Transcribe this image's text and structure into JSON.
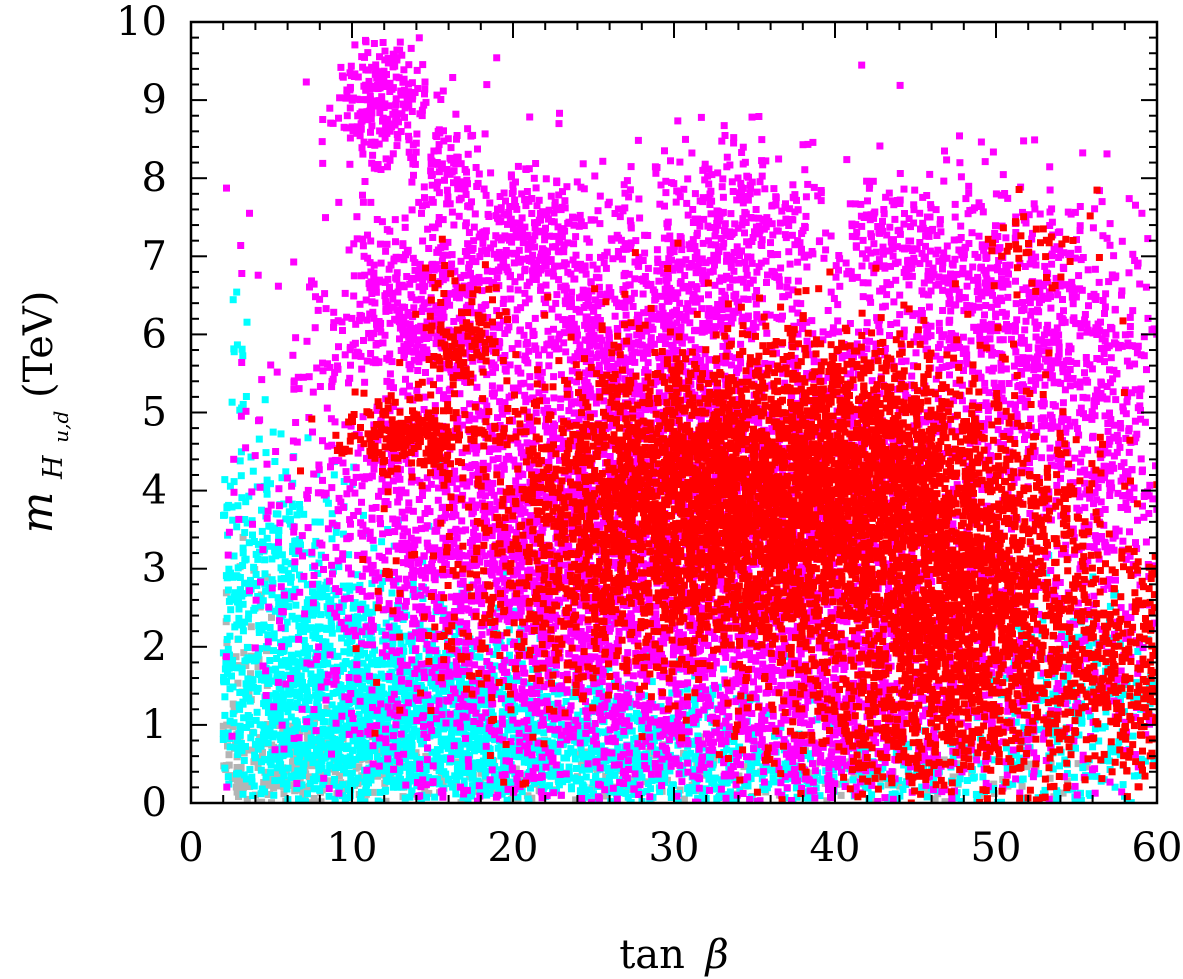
{
  "chart_data": {
    "type": "scatter",
    "title": "",
    "xlabel": {
      "fn": "tan",
      "sym": "β"
    },
    "ylabel": {
      "sym": "m",
      "sub": "H",
      "subsub": "u,d",
      "unit": "(TeV)"
    },
    "xlim": [
      0,
      60
    ],
    "ylim": [
      0,
      10
    ],
    "xticks": [
      0,
      10,
      20,
      30,
      40,
      50,
      60
    ],
    "yticks": [
      0,
      1,
      2,
      3,
      4,
      5,
      6,
      7,
      8,
      9,
      10
    ],
    "grid": false,
    "legend": "none",
    "series": [
      {
        "color": "#b4b4b4",
        "description_regions": "grey points (all points) mostly below 1 TeV, tan beta 2-60",
        "clusters": [
          {
            "cx": 6,
            "cy": 0.4,
            "sx": 4,
            "sy": 0.35,
            "n": 260
          },
          {
            "cx": 20,
            "cy": 0.3,
            "sx": 8,
            "sy": 0.25,
            "n": 180
          },
          {
            "cx": 45,
            "cy": 0.3,
            "sx": 10,
            "sy": 0.2,
            "n": 120
          },
          {
            "cx": 3,
            "cy": 1.8,
            "sx": 1.2,
            "sy": 0.8,
            "n": 60
          }
        ]
      },
      {
        "color": "#00ffff",
        "clusters": [
          {
            "cx": 8,
            "cy": 1.3,
            "sx": 4.5,
            "sy": 0.9,
            "n": 1300
          },
          {
            "cx": 16,
            "cy": 1.0,
            "sx": 5,
            "sy": 0.7,
            "n": 900
          },
          {
            "cx": 26,
            "cy": 0.6,
            "sx": 6,
            "sy": 0.45,
            "n": 800
          },
          {
            "cx": 5,
            "cy": 3.0,
            "sx": 2.5,
            "sy": 0.8,
            "n": 260
          },
          {
            "cx": 55,
            "cy": 1.0,
            "sx": 3,
            "sy": 0.8,
            "n": 300
          },
          {
            "cx": 40,
            "cy": 0.3,
            "sx": 8,
            "sy": 0.25,
            "n": 300
          },
          {
            "cx": 3,
            "cy": 5.6,
            "sx": 0.4,
            "sy": 0.5,
            "n": 12
          }
        ]
      },
      {
        "color": "#ff00ff",
        "clusters": [
          {
            "cx": 33,
            "cy": 3.5,
            "sx": 12,
            "sy": 1.8,
            "n": 4200
          },
          {
            "cx": 20,
            "cy": 3.0,
            "sx": 7,
            "sy": 1.6,
            "n": 1500
          },
          {
            "cx": 12,
            "cy": 9.0,
            "sx": 1.5,
            "sy": 0.45,
            "n": 260
          },
          {
            "cx": 16,
            "cy": 8.1,
            "sx": 1.0,
            "sy": 0.3,
            "n": 80
          },
          {
            "cx": 21,
            "cy": 7.3,
            "sx": 2.5,
            "sy": 0.4,
            "n": 260
          },
          {
            "cx": 34,
            "cy": 7.4,
            "sx": 3,
            "sy": 0.5,
            "n": 300
          },
          {
            "cx": 45,
            "cy": 7.0,
            "sx": 3,
            "sy": 0.5,
            "n": 250
          },
          {
            "cx": 52,
            "cy": 6.0,
            "sx": 3,
            "sy": 0.9,
            "n": 500
          },
          {
            "cx": 14,
            "cy": 6.3,
            "sx": 3,
            "sy": 0.6,
            "n": 400
          },
          {
            "cx": 57,
            "cy": 4.3,
            "sx": 2,
            "sy": 1.6,
            "n": 350
          },
          {
            "cx": 28,
            "cy": 6.0,
            "sx": 4,
            "sy": 0.7,
            "n": 500
          },
          {
            "cx": 40,
            "cy": 1.2,
            "sx": 9,
            "sy": 0.7,
            "n": 900
          }
        ]
      },
      {
        "color": "#ff0000",
        "clusters": [
          {
            "cx": 36,
            "cy": 3.8,
            "sx": 6.5,
            "sy": 1.0,
            "n": 3200
          },
          {
            "cx": 48,
            "cy": 2.5,
            "sx": 4,
            "sy": 1.1,
            "n": 1800
          },
          {
            "cx": 28,
            "cy": 3.8,
            "sx": 4,
            "sy": 0.9,
            "n": 900
          },
          {
            "cx": 42,
            "cy": 4.6,
            "sx": 4,
            "sy": 0.6,
            "n": 600
          },
          {
            "cx": 14,
            "cy": 4.7,
            "sx": 2.5,
            "sy": 0.25,
            "n": 250
          },
          {
            "cx": 17,
            "cy": 5.9,
            "sx": 1.5,
            "sy": 0.4,
            "n": 120
          },
          {
            "cx": 20,
            "cy": 2.6,
            "sx": 4,
            "sy": 0.8,
            "n": 250
          },
          {
            "cx": 58,
            "cy": 1.7,
            "sx": 2,
            "sy": 0.8,
            "n": 350
          },
          {
            "cx": 52,
            "cy": 7.1,
            "sx": 1.5,
            "sy": 0.3,
            "n": 40
          },
          {
            "cx": 45,
            "cy": 1.0,
            "sx": 6,
            "sy": 0.5,
            "n": 300
          }
        ]
      }
    ]
  }
}
